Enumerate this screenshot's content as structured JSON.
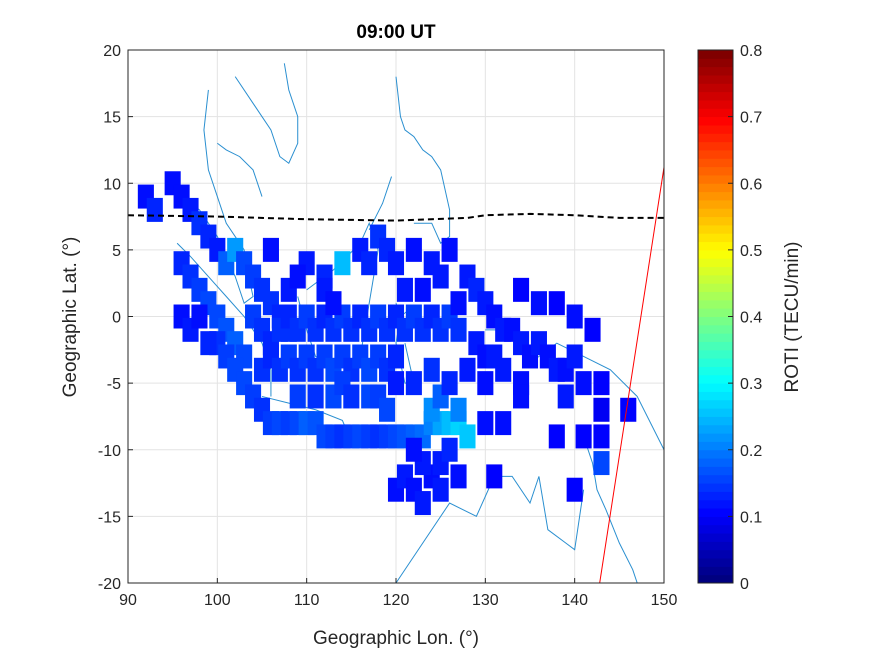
{
  "chart_data": {
    "type": "heatmap",
    "title": "09:00 UT",
    "xlabel": "Geographic Lon. (°)",
    "ylabel": "Geographic Lat. (°)",
    "xlim": [
      90,
      150
    ],
    "ylim": [
      -20,
      20
    ],
    "xticks": [
      "90",
      "100",
      "110",
      "120",
      "130",
      "140",
      "150"
    ],
    "yticks": [
      "20",
      "15",
      "10",
      "5",
      "0",
      "-5",
      "-10",
      "-15",
      "-20"
    ],
    "grid": true,
    "colorbar": {
      "label": "ROTI (TECU/min)",
      "range": [
        0,
        0.8
      ],
      "ticks": [
        "0",
        "0.1",
        "0.2",
        "0.3",
        "0.4",
        "0.5",
        "0.6",
        "0.7",
        "0.8"
      ],
      "colormap": "jet"
    },
    "magnetic_equator": {
      "style": "dashed",
      "color": "#000000",
      "points": [
        [
          90,
          7.6
        ],
        [
          100,
          7.5
        ],
        [
          110,
          7.3
        ],
        [
          120,
          7.2
        ],
        [
          128,
          7.4
        ],
        [
          130,
          7.6
        ],
        [
          135,
          7.7
        ],
        [
          140,
          7.6
        ],
        [
          145,
          7.4
        ],
        [
          150,
          7.4
        ]
      ]
    },
    "red_line": {
      "color": "#ff0000",
      "points": [
        [
          142.8,
          -20
        ],
        [
          150,
          11.2
        ]
      ]
    },
    "roti_cells": [
      [
        92,
        9,
        0.05
      ],
      [
        93,
        8,
        0.07
      ],
      [
        95,
        10,
        0.05
      ],
      [
        96,
        9,
        0.05
      ],
      [
        97,
        8,
        0.06
      ],
      [
        98,
        7,
        0.08
      ],
      [
        99,
        6,
        0.07
      ],
      [
        100,
        5,
        0.06
      ],
      [
        96,
        4,
        0.07
      ],
      [
        97,
        3,
        0.08
      ],
      [
        98,
        2,
        0.09
      ],
      [
        99,
        1,
        0.1
      ],
      [
        100,
        0,
        0.1
      ],
      [
        101,
        -1,
        0.11
      ],
      [
        102,
        -2,
        0.12
      ],
      [
        103,
        -3,
        0.1
      ],
      [
        101,
        4,
        0.12
      ],
      [
        102,
        5,
        0.17
      ],
      [
        103,
        4,
        0.1
      ],
      [
        104,
        3,
        0.09
      ],
      [
        105,
        2,
        0.08
      ],
      [
        106,
        1,
        0.08
      ],
      [
        107,
        0,
        0.07
      ],
      [
        108,
        -1,
        0.08
      ],
      [
        100,
        -2,
        0.08
      ],
      [
        101,
        -3,
        0.09
      ],
      [
        102,
        -4,
        0.1
      ],
      [
        103,
        -5,
        0.1
      ],
      [
        104,
        -6,
        0.09
      ],
      [
        105,
        -7,
        0.08
      ],
      [
        106,
        -8,
        0.09
      ],
      [
        107,
        -8,
        0.1
      ],
      [
        108,
        -8,
        0.09
      ],
      [
        109,
        -8,
        0.1
      ],
      [
        110,
        -8,
        0.12
      ],
      [
        111,
        -8,
        0.11
      ],
      [
        112,
        -9,
        0.1
      ],
      [
        113,
        -9,
        0.09
      ],
      [
        114,
        -9,
        0.08
      ],
      [
        115,
        -9,
        0.09
      ],
      [
        116,
        -9,
        0.1
      ],
      [
        117,
        -9,
        0.09
      ],
      [
        118,
        -9,
        0.08
      ],
      [
        119,
        -9,
        0.09
      ],
      [
        120,
        -9,
        0.1
      ],
      [
        121,
        -9,
        0.11
      ],
      [
        122,
        -9,
        0.12
      ],
      [
        123,
        -9,
        0.13
      ],
      [
        124,
        -8,
        0.15
      ],
      [
        125,
        -8,
        0.18
      ],
      [
        126,
        -8,
        0.2
      ],
      [
        127,
        -8,
        0.22
      ],
      [
        128,
        -9,
        0.21
      ],
      [
        127,
        -7,
        0.15
      ],
      [
        124,
        -7,
        0.16
      ],
      [
        125,
        -6,
        0.12
      ],
      [
        105,
        -4,
        0.08
      ],
      [
        106,
        -3,
        0.07
      ],
      [
        107,
        -4,
        0.08
      ],
      [
        108,
        -3,
        0.09
      ],
      [
        109,
        -4,
        0.08
      ],
      [
        110,
        -3,
        0.09
      ],
      [
        111,
        -4,
        0.08
      ],
      [
        112,
        -3,
        0.09
      ],
      [
        113,
        -4,
        0.1
      ],
      [
        114,
        -3,
        0.09
      ],
      [
        115,
        -4,
        0.08
      ],
      [
        116,
        -3,
        0.09
      ],
      [
        117,
        -4,
        0.1
      ],
      [
        118,
        -3,
        0.09
      ],
      [
        119,
        -4,
        0.08
      ],
      [
        120,
        -3,
        0.07
      ],
      [
        104,
        0,
        0.09
      ],
      [
        105,
        -1,
        0.08
      ],
      [
        106,
        -2,
        0.07
      ],
      [
        107,
        -1,
        0.08
      ],
      [
        108,
        0,
        0.07
      ],
      [
        109,
        -1,
        0.08
      ],
      [
        110,
        0,
        0.09
      ],
      [
        111,
        -1,
        0.08
      ],
      [
        112,
        0,
        0.07
      ],
      [
        113,
        -1,
        0.08
      ],
      [
        114,
        0,
        0.09
      ],
      [
        115,
        -1,
        0.08
      ],
      [
        116,
        0,
        0.07
      ],
      [
        117,
        -1,
        0.08
      ],
      [
        118,
        0,
        0.09
      ],
      [
        119,
        -1,
        0.08
      ],
      [
        120,
        0,
        0.07
      ],
      [
        121,
        -1,
        0.08
      ],
      [
        122,
        0,
        0.09
      ],
      [
        123,
        -1,
        0.08
      ],
      [
        124,
        0,
        0.07
      ],
      [
        125,
        -1,
        0.08
      ],
      [
        126,
        0,
        0.09
      ],
      [
        127,
        -1,
        0.08
      ],
      [
        110,
        4,
        0.06
      ],
      [
        112,
        3,
        0.07
      ],
      [
        114,
        4,
        0.2
      ],
      [
        116,
        5,
        0.06
      ],
      [
        117,
        4,
        0.07
      ],
      [
        118,
        6,
        0.08
      ],
      [
        119,
        5,
        0.07
      ],
      [
        120,
        4,
        0.06
      ],
      [
        122,
        5,
        0.05
      ],
      [
        124,
        4,
        0.06
      ],
      [
        126,
        5,
        0.05
      ],
      [
        128,
        3,
        0.06
      ],
      [
        129,
        2,
        0.07
      ],
      [
        130,
        1,
        0.06
      ],
      [
        131,
        0,
        0.05
      ],
      [
        132,
        -1,
        0.06
      ],
      [
        120,
        -5,
        0.06
      ],
      [
        122,
        -5,
        0.07
      ],
      [
        124,
        -4,
        0.08
      ],
      [
        126,
        -5,
        0.07
      ],
      [
        128,
        -4,
        0.06
      ],
      [
        130,
        -5,
        0.05
      ],
      [
        132,
        -4,
        0.06
      ],
      [
        134,
        -5,
        0.05
      ],
      [
        133,
        -1,
        0.05
      ],
      [
        134,
        -2,
        0.06
      ],
      [
        135,
        -3,
        0.05
      ],
      [
        136,
        -2,
        0.06
      ],
      [
        137,
        -3,
        0.05
      ],
      [
        138,
        -4,
        0.06
      ],
      [
        139,
        -4,
        0.05
      ],
      [
        140,
        -3,
        0.06
      ],
      [
        134,
        2,
        0.04
      ],
      [
        136,
        1,
        0.05
      ],
      [
        138,
        1,
        0.04
      ],
      [
        140,
        0,
        0.05
      ],
      [
        142,
        -1,
        0.04
      ],
      [
        130,
        -8,
        0.05
      ],
      [
        132,
        -8,
        0.05
      ],
      [
        134,
        -6,
        0.05
      ],
      [
        139,
        -6,
        0.06
      ],
      [
        141,
        -5,
        0.05
      ],
      [
        143,
        -5,
        0.04
      ],
      [
        143,
        -7,
        0.03
      ],
      [
        146,
        -7,
        0.04
      ],
      [
        143,
        -9,
        0.04
      ],
      [
        138,
        -9,
        0.04
      ],
      [
        141,
        -9,
        0.04
      ],
      [
        120,
        -13,
        0.05
      ],
      [
        121,
        -12,
        0.06
      ],
      [
        122,
        -13,
        0.05
      ],
      [
        123,
        -14,
        0.06
      ],
      [
        124,
        -12,
        0.05
      ],
      [
        125,
        -11,
        0.06
      ],
      [
        126,
        -10,
        0.07
      ],
      [
        123,
        -11,
        0.06
      ],
      [
        122,
        -10,
        0.05
      ],
      [
        125,
        -13,
        0.06
      ],
      [
        127,
        -12,
        0.05
      ],
      [
        131,
        -12,
        0.04
      ],
      [
        143,
        -11,
        0.1
      ],
      [
        140,
        -13,
        0.04
      ],
      [
        96,
        0,
        0.05
      ],
      [
        97,
        -1,
        0.06
      ],
      [
        98,
        0,
        0.05
      ],
      [
        99,
        -2,
        0.07
      ],
      [
        106,
        5,
        0.05
      ],
      [
        108,
        2,
        0.06
      ],
      [
        109,
        3,
        0.05
      ],
      [
        112,
        2,
        0.06
      ],
      [
        113,
        1,
        0.05
      ],
      [
        121,
        2,
        0.06
      ],
      [
        123,
        2,
        0.05
      ],
      [
        125,
        3,
        0.06
      ],
      [
        127,
        1,
        0.05
      ],
      [
        129,
        -2,
        0.06
      ],
      [
        130,
        -3,
        0.05
      ],
      [
        131,
        -3,
        0.06
      ],
      [
        109,
        -6,
        0.09
      ],
      [
        111,
        -6,
        0.08
      ],
      [
        113,
        -6,
        0.1
      ],
      [
        114,
        -5,
        0.09
      ],
      [
        115,
        -6,
        0.08
      ],
      [
        117,
        -6,
        0.1
      ],
      [
        118,
        -6,
        0.09
      ],
      [
        119,
        -7,
        0.1
      ]
    ]
  }
}
